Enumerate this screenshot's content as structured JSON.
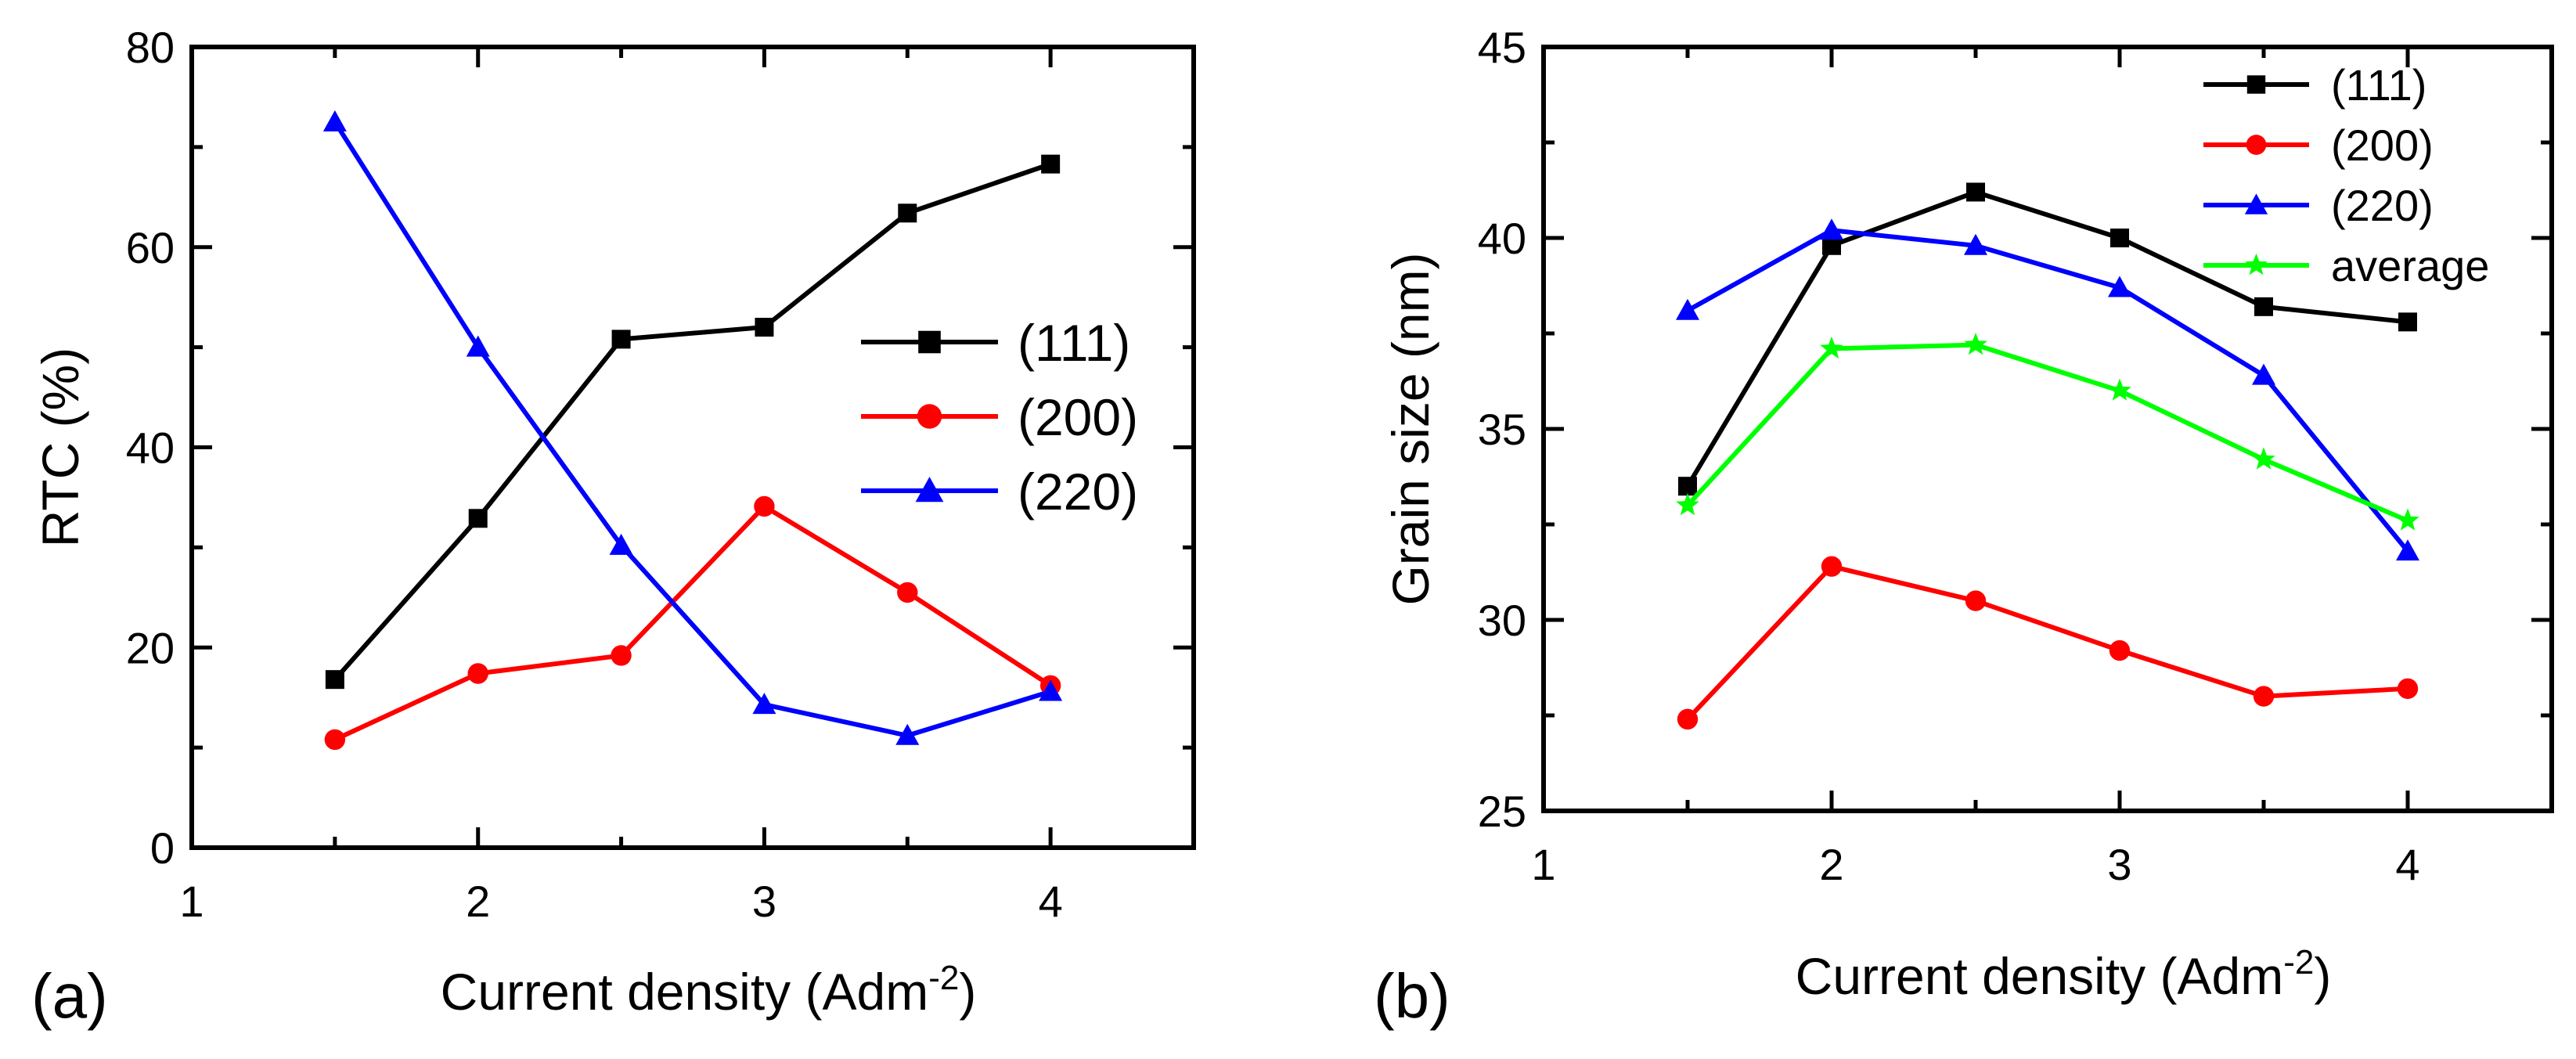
{
  "chart_data": [
    {
      "type": "line",
      "panel_label": "(a)",
      "title": "",
      "xlabel": "Current density (Adm",
      "xlabel_sup": "-2",
      "xlabel_close": ")",
      "ylabel": "RTC (%)",
      "xlim": [
        1,
        4.5
      ],
      "ylim": [
        0,
        80
      ],
      "xticks": [
        1,
        2,
        3,
        4
      ],
      "yticks": [
        0,
        20,
        40,
        60,
        80
      ],
      "legend_position": "middle-right",
      "series": [
        {
          "name": "(111)",
          "color": "#000000",
          "marker": "square",
          "x": [
            1.5,
            2,
            2.5,
            3,
            3.5,
            4
          ],
          "y": [
            16.8,
            32.9,
            50.8,
            52.0,
            63.4,
            68.3
          ]
        },
        {
          "name": "(200)",
          "color": "#ff0000",
          "marker": "circle",
          "x": [
            1.5,
            2,
            2.5,
            3,
            3.5,
            4
          ],
          "y": [
            10.8,
            17.4,
            19.2,
            34.1,
            25.5,
            16.2
          ]
        },
        {
          "name": "(220)",
          "color": "#0000ff",
          "marker": "triangle",
          "x": [
            1.5,
            2,
            2.5,
            3,
            3.5,
            4
          ],
          "y": [
            72.5,
            50.0,
            30.2,
            14.3,
            11.2,
            15.6
          ]
        }
      ]
    },
    {
      "type": "line",
      "panel_label": "(b)",
      "title": "",
      "xlabel": "Current density (Adm",
      "xlabel_sup": "-2",
      "xlabel_close": ")",
      "ylabel": "Grain size (nm)",
      "xlim": [
        1,
        4.5
      ],
      "ylim": [
        25,
        45
      ],
      "xticks": [
        1,
        2,
        3,
        4
      ],
      "yticks": [
        25,
        30,
        35,
        40,
        45
      ],
      "legend_position": "top-right",
      "series": [
        {
          "name": "(111)",
          "color": "#000000",
          "marker": "square",
          "x": [
            1.5,
            2,
            2.5,
            3,
            3.5,
            4
          ],
          "y": [
            33.5,
            39.8,
            41.2,
            40.0,
            38.2,
            37.8
          ]
        },
        {
          "name": "(200)",
          "color": "#ff0000",
          "marker": "circle",
          "x": [
            1.5,
            2,
            2.5,
            3,
            3.5,
            4
          ],
          "y": [
            27.4,
            31.4,
            30.5,
            29.2,
            28.0,
            28.2
          ]
        },
        {
          "name": "(220)",
          "color": "#0000ff",
          "marker": "triangle",
          "x": [
            1.5,
            2,
            2.5,
            3,
            3.5,
            4
          ],
          "y": [
            38.1,
            40.2,
            39.8,
            38.7,
            36.4,
            31.8
          ]
        },
        {
          "name": "average",
          "color": "#00ff00",
          "marker": "star",
          "x": [
            1.5,
            2,
            2.5,
            3,
            3.5,
            4
          ],
          "y": [
            33.0,
            37.1,
            37.2,
            36.0,
            34.2,
            32.6
          ]
        }
      ]
    }
  ]
}
